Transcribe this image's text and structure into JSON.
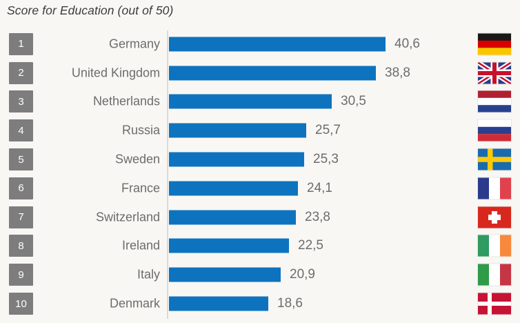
{
  "title": "Score for Education (out of 50)",
  "colors": {
    "background": "#F8F7F4",
    "bar": "#0E73BE",
    "rank_badge": "#7D7D7D",
    "rank_text": "#FFFFFF",
    "label_text": "#6C6C6C",
    "title_text": "#3B3B3B",
    "axis_line": "#DCDAD6"
  },
  "chart_data": {
    "type": "bar",
    "orientation": "horizontal",
    "title": "Score for Education (out of 50)",
    "xlabel": "",
    "ylabel": "",
    "xlim": [
      0,
      50
    ],
    "grid": false,
    "legend": false,
    "ranks": [
      1,
      2,
      3,
      4,
      5,
      6,
      7,
      8,
      9,
      10
    ],
    "categories": [
      "Germany",
      "United Kingdom",
      "Netherlands",
      "Russia",
      "Sweden",
      "France",
      "Switzerland",
      "Ireland",
      "Italy",
      "Denmark"
    ],
    "values": [
      40.6,
      38.8,
      30.5,
      25.7,
      25.3,
      24.1,
      23.8,
      22.5,
      20.9,
      18.6
    ],
    "value_labels": [
      "40,6",
      "38,8",
      "30,5",
      "25,7",
      "25,3",
      "24,1",
      "23,8",
      "22,5",
      "20,9",
      "18,6"
    ],
    "flag_icons": [
      "germany-flag-icon",
      "united-kingdom-flag-icon",
      "netherlands-flag-icon",
      "russia-flag-icon",
      "sweden-flag-icon",
      "france-flag-icon",
      "switzerland-flag-icon",
      "ireland-flag-icon",
      "italy-flag-icon",
      "denmark-flag-icon"
    ],
    "flag_codes": [
      "de",
      "gb",
      "nl",
      "ru",
      "se",
      "fr",
      "ch",
      "ie",
      "it",
      "dk"
    ]
  }
}
